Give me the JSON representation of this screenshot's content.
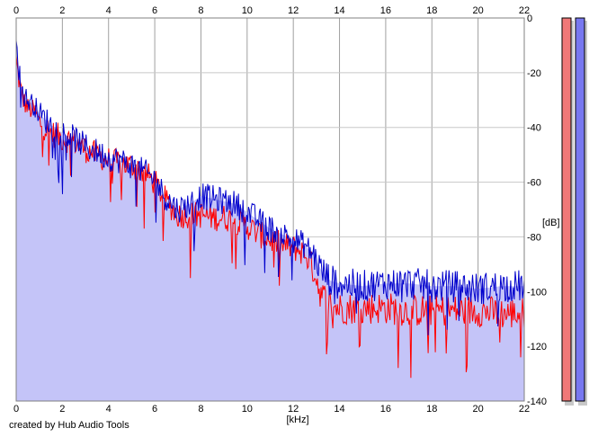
{
  "chart_data": {
    "type": "area",
    "xlabel": "[kHz]",
    "ylabel": "[dB]",
    "x_ticks": [
      "0",
      "2",
      "4",
      "6",
      "8",
      "10",
      "12",
      "14",
      "16",
      "18",
      "20",
      "22"
    ],
    "y_ticks": [
      "0",
      "-20",
      "-40",
      "-60",
      "-80",
      "-100",
      "-120",
      "-140"
    ],
    "xlim": [
      0,
      22
    ],
    "ylim": [
      -140,
      0
    ],
    "grid": true,
    "fill_color": "#c4c4f8",
    "series": [
      {
        "color": "#ff0000",
        "x": [
          0,
          0.1,
          0.3,
          0.5,
          0.8,
          1.0,
          1.5,
          2.0,
          2.5,
          3.0,
          3.5,
          4.0,
          4.5,
          5.0,
          5.5,
          6.0,
          6.5,
          7.0,
          7.5,
          8.0,
          8.5,
          9.0,
          9.5,
          10.0,
          10.5,
          11.0,
          11.5,
          12.0,
          12.5,
          12.9,
          13.2,
          13.6,
          14.0,
          15.0,
          16.0,
          17.0,
          18.0,
          19.0,
          20.0,
          21.0,
          22.0
        ],
        "y": [
          -15,
          -22,
          -30,
          -33,
          -34,
          -38,
          -42,
          -44,
          -45,
          -48,
          -50,
          -52,
          -53,
          -54,
          -56,
          -60,
          -67,
          -72,
          -72,
          -72,
          -73,
          -73,
          -74,
          -76,
          -79,
          -81,
          -83,
          -84,
          -86,
          -92,
          -101,
          -105,
          -106,
          -106,
          -106,
          -107,
          -107,
          -107,
          -107,
          -108,
          -108
        ]
      },
      {
        "color": "#0000cc",
        "x": [
          0,
          0.1,
          0.3,
          0.5,
          0.8,
          1.0,
          1.5,
          2.0,
          2.5,
          3.0,
          3.5,
          4.0,
          4.5,
          5.0,
          5.5,
          6.0,
          6.5,
          7.0,
          7.5,
          8.0,
          8.5,
          9.0,
          9.5,
          10.0,
          10.5,
          11.0,
          11.5,
          12.0,
          12.5,
          12.9,
          13.2,
          13.6,
          14.0,
          15.0,
          16.0,
          17.0,
          18.0,
          19.0,
          20.0,
          21.0,
          22.0
        ],
        "y": [
          -5,
          -18,
          -28,
          -30,
          -32,
          -35,
          -39,
          -42,
          -44,
          -47,
          -49,
          -51,
          -52,
          -54,
          -56,
          -59,
          -66,
          -70,
          -68,
          -65,
          -66,
          -67,
          -68,
          -71,
          -74,
          -77,
          -79,
          -81,
          -83,
          -87,
          -92,
          -96,
          -97,
          -98,
          -97,
          -97,
          -98,
          -98,
          -99,
          -98,
          -98
        ]
      }
    ]
  },
  "meters": [
    {
      "color": "#f07878"
    },
    {
      "color": "#7878f0"
    }
  ],
  "credit": "created by Hub Audio Tools"
}
